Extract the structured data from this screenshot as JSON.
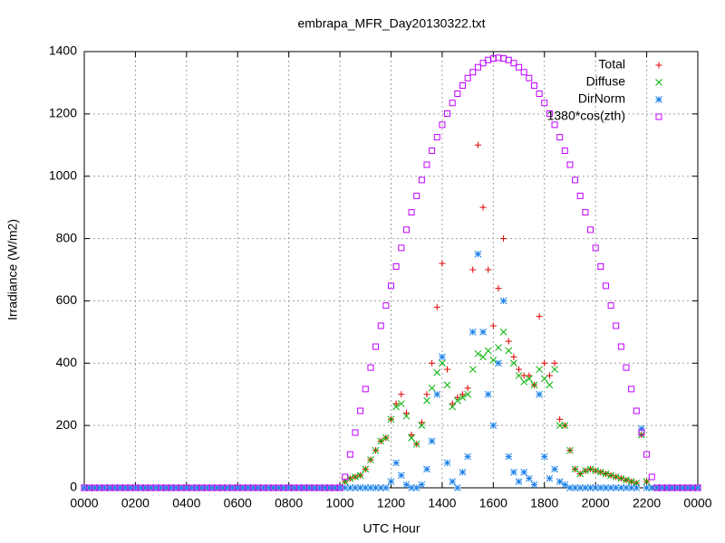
{
  "chart_data": {
    "type": "scatter",
    "title": "embrapa_MFR_Day20130322.txt",
    "x_label": "UTC Hour",
    "y_label": "Irradiance (W/m2)",
    "xlim": [
      0,
      24
    ],
    "ylim": [
      0,
      1400
    ],
    "xticks": [
      {
        "value": 0,
        "label": "0000"
      },
      {
        "value": 2,
        "label": "0200"
      },
      {
        "value": 4,
        "label": "0400"
      },
      {
        "value": 6,
        "label": "0600"
      },
      {
        "value": 8,
        "label": "0800"
      },
      {
        "value": 10,
        "label": "1000"
      },
      {
        "value": 12,
        "label": "1200"
      },
      {
        "value": 14,
        "label": "1400"
      },
      {
        "value": 16,
        "label": "1600"
      },
      {
        "value": 18,
        "label": "1800"
      },
      {
        "value": 20,
        "label": "2000"
      },
      {
        "value": 22,
        "label": "2200"
      },
      {
        "value": 24,
        "label": "0000"
      }
    ],
    "yticks": [
      0,
      200,
      400,
      600,
      800,
      1000,
      1200,
      1400
    ],
    "grid": true,
    "legend": "top-right",
    "x": [
      0,
      0.2,
      0.4,
      0.6,
      0.8,
      1,
      1.2,
      1.4,
      1.6,
      1.8,
      2,
      2.2,
      2.4,
      2.6,
      2.8,
      3,
      3.2,
      3.4,
      3.6,
      3.8,
      4,
      4.2,
      4.4,
      4.6,
      4.8,
      5,
      5.2,
      5.4,
      5.6,
      5.8,
      6,
      6.2,
      6.4,
      6.6,
      6.8,
      7,
      7.2,
      7.4,
      7.6,
      7.8,
      8,
      8.2,
      8.4,
      8.6,
      8.8,
      9,
      9.2,
      9.4,
      9.6,
      9.8,
      10,
      10.2,
      10.4,
      10.6,
      10.8,
      11,
      11.2,
      11.4,
      11.6,
      11.8,
      12,
      12.2,
      12.4,
      12.6,
      12.8,
      13,
      13.2,
      13.4,
      13.6,
      13.8,
      14,
      14.2,
      14.4,
      14.6,
      14.8,
      15,
      15.2,
      15.4,
      15.6,
      15.8,
      16,
      16.2,
      16.4,
      16.6,
      16.8,
      17,
      17.2,
      17.4,
      17.6,
      17.8,
      18,
      18.2,
      18.4,
      18.6,
      18.8,
      19,
      19.2,
      19.4,
      19.6,
      19.8,
      20,
      20.2,
      20.4,
      20.6,
      20.8,
      21,
      21.2,
      21.4,
      21.6,
      21.8,
      22,
      22.2,
      22.4,
      22.6,
      22.8,
      23,
      23.2,
      23.4,
      23.6,
      23.8,
      24
    ],
    "series": [
      {
        "name": "Total",
        "color": "#e00000",
        "marker": "plus",
        "values": [
          0,
          0,
          0,
          0,
          0,
          0,
          0,
          0,
          0,
          0,
          0,
          0,
          0,
          0,
          0,
          0,
          0,
          0,
          0,
          0,
          0,
          0,
          0,
          0,
          0,
          0,
          0,
          0,
          0,
          0,
          0,
          0,
          0,
          0,
          0,
          0,
          0,
          0,
          0,
          0,
          0,
          0,
          0,
          0,
          0,
          0,
          0,
          0,
          0,
          0,
          0,
          20,
          30,
          35,
          40,
          60,
          90,
          120,
          150,
          160,
          220,
          270,
          300,
          240,
          170,
          140,
          210,
          300,
          400,
          580,
          720,
          380,
          270,
          290,
          300,
          320,
          700,
          1100,
          900,
          700,
          520,
          640,
          800,
          470,
          420,
          380,
          360,
          360,
          330,
          550,
          400,
          360,
          400,
          220,
          200,
          120,
          60,
          45,
          55,
          60,
          55,
          50,
          45,
          40,
          35,
          30,
          25,
          20,
          15,
          170,
          20,
          0,
          0,
          0,
          0,
          0,
          0,
          0,
          0,
          0,
          0
        ]
      },
      {
        "name": "Diffuse",
        "color": "#00b000",
        "marker": "cross",
        "values": [
          0,
          0,
          0,
          0,
          0,
          0,
          0,
          0,
          0,
          0,
          0,
          0,
          0,
          0,
          0,
          0,
          0,
          0,
          0,
          0,
          0,
          0,
          0,
          0,
          0,
          0,
          0,
          0,
          0,
          0,
          0,
          0,
          0,
          0,
          0,
          0,
          0,
          0,
          0,
          0,
          0,
          0,
          0,
          0,
          0,
          0,
          0,
          0,
          0,
          0,
          0,
          20,
          30,
          35,
          40,
          60,
          90,
          120,
          150,
          160,
          220,
          260,
          270,
          230,
          160,
          140,
          200,
          280,
          320,
          370,
          400,
          330,
          260,
          280,
          290,
          300,
          380,
          430,
          420,
          440,
          410,
          450,
          500,
          440,
          400,
          360,
          340,
          350,
          330,
          380,
          350,
          330,
          380,
          200,
          200,
          120,
          60,
          45,
          55,
          60,
          55,
          50,
          45,
          40,
          35,
          30,
          25,
          20,
          15,
          170,
          20,
          0,
          0,
          0,
          0,
          0,
          0,
          0,
          0,
          0,
          0
        ]
      },
      {
        "name": "DirNorm",
        "color": "#1a80e8",
        "marker": "star",
        "values": [
          0,
          0,
          0,
          0,
          0,
          0,
          0,
          0,
          0,
          0,
          0,
          0,
          0,
          0,
          0,
          0,
          0,
          0,
          0,
          0,
          0,
          0,
          0,
          0,
          0,
          0,
          0,
          0,
          0,
          0,
          0,
          0,
          0,
          0,
          0,
          0,
          0,
          0,
          0,
          0,
          0,
          0,
          0,
          0,
          0,
          0,
          0,
          0,
          0,
          0,
          0,
          0,
          0,
          0,
          0,
          0,
          0,
          0,
          0,
          0,
          20,
          80,
          40,
          10,
          0,
          0,
          10,
          60,
          150,
          300,
          420,
          80,
          20,
          0,
          50,
          100,
          500,
          750,
          500,
          300,
          200,
          400,
          600,
          100,
          50,
          20,
          50,
          30,
          10,
          300,
          100,
          30,
          60,
          20,
          10,
          0,
          0,
          0,
          0,
          0,
          0,
          0,
          0,
          0,
          0,
          0,
          0,
          0,
          0,
          190,
          0,
          0,
          0,
          0,
          0,
          0,
          0,
          0,
          0,
          0,
          0
        ]
      },
      {
        "name": "1380*cos(zth)",
        "color": "#c000ff",
        "marker": "square",
        "values": [
          0,
          0,
          0,
          0,
          0,
          0,
          0,
          0,
          0,
          0,
          0,
          0,
          0,
          0,
          0,
          0,
          0,
          0,
          0,
          0,
          0,
          0,
          0,
          0,
          0,
          0,
          0,
          0,
          0,
          0,
          0,
          0,
          0,
          0,
          0,
          0,
          0,
          0,
          0,
          0,
          0,
          0,
          0,
          0,
          0,
          0,
          0,
          0,
          0,
          0,
          0,
          35,
          107,
          177,
          247,
          317,
          386,
          453,
          520,
          585,
          648,
          710,
          770,
          828,
          884,
          937,
          988,
          1037,
          1082,
          1125,
          1165,
          1201,
          1235,
          1265,
          1291,
          1315,
          1334,
          1350,
          1363,
          1373,
          1378,
          1380,
          1378,
          1373,
          1363,
          1350,
          1334,
          1315,
          1291,
          1265,
          1235,
          1201,
          1165,
          1125,
          1082,
          1037,
          988,
          937,
          884,
          828,
          770,
          710,
          648,
          585,
          520,
          453,
          386,
          317,
          247,
          177,
          107,
          35,
          0,
          0,
          0,
          0,
          0,
          0,
          0,
          0,
          0
        ]
      }
    ]
  }
}
